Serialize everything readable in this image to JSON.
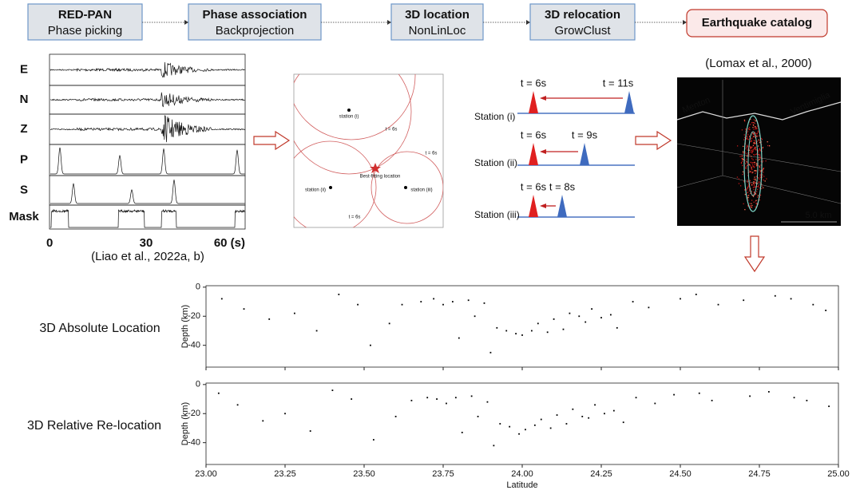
{
  "pipeline": [
    {
      "title": "RED-PAN",
      "subtitle": "Phase picking"
    },
    {
      "title": "Phase association",
      "subtitle": "Backprojection"
    },
    {
      "title": "3D location",
      "subtitle": "NonLinLoc"
    },
    {
      "title": "3D relocation",
      "subtitle": "GrowClust"
    }
  ],
  "catalog": "Earthquake catalog",
  "waveform_panel": {
    "channels": [
      "E",
      "N",
      "Z",
      "P",
      "S",
      "Mask"
    ],
    "x_labels": [
      "0",
      "30",
      "60 (s)"
    ],
    "credit": "(Liao et al., 2022a, b)"
  },
  "backprojection": {
    "stations": [
      "station (i)",
      "station (ii)",
      "station (iii)"
    ],
    "best_fit": "Best-fitting location",
    "times": [
      "t = 6s",
      "t = 6s",
      "t = 6s"
    ]
  },
  "travel_times": [
    {
      "station": "Station (i)",
      "first": "t = 6s",
      "second": "t = 11s"
    },
    {
      "station": "Station (ii)",
      "first": "t = 6s",
      "second": "t = 9s"
    },
    {
      "station": "Station (iii)",
      "first": "t = 6s",
      "second": "t = 8s"
    }
  ],
  "location_image": {
    "credit": "(Lomax et al., 2000)",
    "places": [
      "Menton",
      "Ventimiglia"
    ],
    "scale": "5.0 km"
  },
  "chart_data": [
    {
      "type": "scatter",
      "title": "3D Absolute Location",
      "y_label": "Depth (km)",
      "x": [
        23.05,
        23.12,
        23.2,
        23.28,
        23.35,
        23.42,
        23.48,
        23.52,
        23.58,
        23.62,
        23.68,
        23.72,
        23.75,
        23.78,
        23.8,
        23.83,
        23.85,
        23.88,
        23.9,
        23.92,
        23.95,
        23.98,
        24.0,
        24.03,
        24.05,
        24.08,
        24.1,
        24.13,
        24.15,
        24.18,
        24.2,
        24.22,
        24.25,
        24.28,
        24.3,
        24.35,
        24.4,
        24.5,
        24.55,
        24.62,
        24.7,
        24.8,
        24.85,
        24.92,
        24.96
      ],
      "y": [
        -8,
        -15,
        -22,
        -18,
        -30,
        -5,
        -12,
        -40,
        -25,
        -12,
        -10,
        -8,
        -12,
        -10,
        -35,
        -9,
        -20,
        -11,
        -45,
        -28,
        -30,
        -32,
        -33,
        -30,
        -25,
        -31,
        -22,
        -29,
        -18,
        -20,
        -24,
        -15,
        -21,
        -19,
        -28,
        -10,
        -14,
        -8,
        -5,
        -12,
        -9,
        -6,
        -8,
        -12,
        -16
      ],
      "xlim": [
        23,
        25
      ],
      "xticks": [
        23,
        23.25,
        23.5,
        23.75,
        24,
        24.25,
        24.5,
        24.75,
        25
      ],
      "ylim": [
        -55,
        1
      ],
      "yticks": [
        0,
        -20,
        -40
      ]
    },
    {
      "type": "scatter",
      "title": "3D Relative Re-location",
      "y_label": "Depth (km)",
      "x_label": "Latitude",
      "x": [
        23.04,
        23.1,
        23.18,
        23.25,
        23.33,
        23.4,
        23.46,
        23.53,
        23.6,
        23.65,
        23.7,
        23.73,
        23.76,
        23.79,
        23.81,
        23.84,
        23.86,
        23.89,
        23.91,
        23.93,
        23.96,
        23.99,
        24.01,
        24.04,
        24.06,
        24.09,
        24.11,
        24.14,
        24.16,
        24.19,
        24.21,
        24.23,
        24.26,
        24.29,
        24.32,
        24.36,
        24.42,
        24.48,
        24.56,
        24.6,
        24.72,
        24.78,
        24.86,
        24.9,
        24.97
      ],
      "y": [
        -6,
        -14,
        -25,
        -20,
        -32,
        -4,
        -10,
        -38,
        -22,
        -11,
        -9,
        -10,
        -13,
        -9,
        -33,
        -8,
        -22,
        -12,
        -42,
        -27,
        -29,
        -34,
        -31,
        -28,
        -24,
        -30,
        -21,
        -27,
        -17,
        -22,
        -23,
        -14,
        -20,
        -18,
        -26,
        -9,
        -13,
        -7,
        -6,
        -11,
        -8,
        -5,
        -9,
        -11,
        -15
      ],
      "xlim": [
        23,
        25
      ],
      "xticks": [
        {
          "value": 23,
          "label": "23.00"
        },
        23.25,
        {
          "value": 23.5,
          "label": "23.50"
        },
        23.75,
        {
          "value": 24,
          "label": "24.00"
        },
        24.25,
        {
          "value": 24.5,
          "label": "24.50"
        },
        24.75,
        {
          "value": 25,
          "label": "25.00"
        }
      ],
      "ylim": [
        -55,
        1
      ],
      "yticks": [
        0,
        -20,
        -40
      ]
    }
  ]
}
